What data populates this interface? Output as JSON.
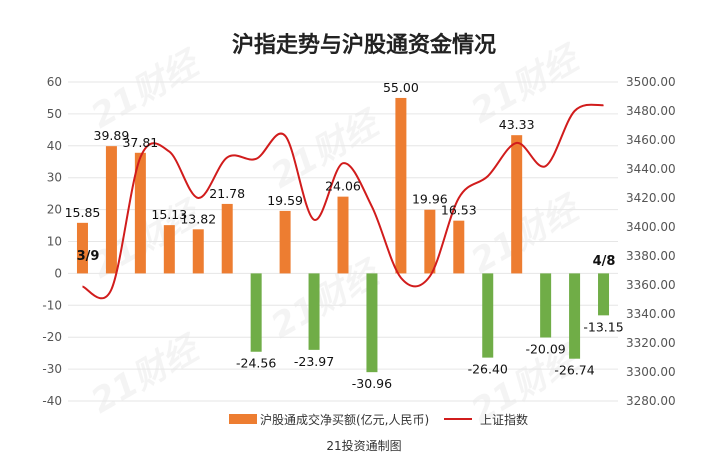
{
  "chart_data": {
    "type": "bar+line",
    "title": "沪指走势与沪股通资金情况",
    "source": "21投资通制图",
    "watermark": "21财经",
    "left_axis": {
      "min": -40,
      "max": 60,
      "ticks": [
        "60",
        "50",
        "40",
        "30",
        "20",
        "10",
        "0",
        "-10",
        "-20",
        "-30",
        "-40"
      ]
    },
    "right_axis": {
      "min": 3280,
      "max": 3500,
      "ticks": [
        "3500.00",
        "3480.00",
        "3460.00",
        "3440.00",
        "3420.00",
        "3400.00",
        "3380.00",
        "3360.00",
        "3340.00",
        "3320.00",
        "3300.00",
        "3280.00"
      ]
    },
    "date_labels": {
      "start": "3/9",
      "end": "4/8"
    },
    "series": [
      {
        "name": "沪股通成交净买额(亿元,人民币)",
        "type": "bar",
        "axis": "left",
        "values": [
          15.85,
          39.89,
          37.81,
          15.13,
          13.82,
          21.78,
          -24.56,
          19.59,
          -23.97,
          24.06,
          -30.96,
          55.0,
          19.96,
          16.53,
          -26.4,
          43.33,
          -20.09,
          -26.74,
          -13.15
        ],
        "labels": [
          "15.85",
          "39.89",
          "37.81",
          "15.13",
          "13.82",
          "21.78",
          "-24.56",
          "19.59",
          "-23.97",
          "24.06",
          "-30.96",
          "55.00",
          "19.96",
          "16.53",
          "-26.40",
          "43.33",
          "-20.09",
          "-26.74",
          "-13.15"
        ]
      },
      {
        "name": "上证指数",
        "type": "line",
        "axis": "right",
        "values": [
          3359,
          3357,
          3448,
          3452,
          3420,
          3448,
          3447,
          3463,
          3405,
          3444,
          3414,
          3365,
          3366,
          3420,
          3435,
          3458,
          3442,
          3480,
          3484
        ]
      }
    ],
    "colors": {
      "positive": "#ED7D31",
      "negative": "#70AD47",
      "line": "#D11C1C",
      "grid": "#e6e6e6"
    },
    "grid": true,
    "legend_position": "bottom"
  }
}
